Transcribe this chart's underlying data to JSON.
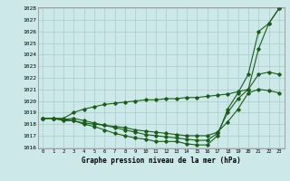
{
  "title": "Graphe pression niveau de la mer (hPa)",
  "bg_color": "#cce8e8",
  "line_color": "#1a5e1a",
  "grid_color": "#aacccc",
  "ylim": [
    1016,
    1028
  ],
  "yticks": [
    1016,
    1017,
    1018,
    1019,
    1020,
    1021,
    1022,
    1023,
    1024,
    1025,
    1026,
    1027,
    1028
  ],
  "line1": [
    1018.5,
    1018.5,
    1018.3,
    1018.3,
    1018.0,
    1017.8,
    1017.5,
    1017.2,
    1017.0,
    1016.8,
    1016.7,
    1016.5,
    1016.5,
    1016.5,
    1016.3,
    1016.2,
    1016.2,
    1017.0,
    1019.3,
    1020.7,
    1022.3,
    1026.0,
    1026.7,
    1028.0
  ],
  "line2": [
    1018.5,
    1018.5,
    1018.4,
    1018.5,
    1018.3,
    1018.1,
    1017.9,
    1017.7,
    1017.5,
    1017.3,
    1017.1,
    1017.0,
    1016.9,
    1016.8,
    1016.7,
    1016.6,
    1016.6,
    1017.2,
    1019.0,
    1020.2,
    1021.0,
    1022.3,
    1022.5,
    1022.3
  ],
  "line3": [
    1018.5,
    1018.5,
    1018.5,
    1019.0,
    1019.3,
    1019.5,
    1019.7,
    1019.8,
    1019.9,
    1020.0,
    1020.1,
    1020.1,
    1020.2,
    1020.2,
    1020.3,
    1020.3,
    1020.4,
    1020.5,
    1020.6,
    1020.8,
    1021.0,
    1024.5,
    1026.7,
    1028.0
  ],
  "line4": [
    1018.5,
    1018.5,
    1018.4,
    1018.3,
    1018.1,
    1018.0,
    1017.9,
    1017.8,
    1017.7,
    1017.5,
    1017.4,
    1017.3,
    1017.2,
    1017.1,
    1017.0,
    1017.0,
    1017.0,
    1017.3,
    1018.2,
    1019.3,
    1020.7,
    1021.0,
    1020.9,
    1020.7
  ]
}
